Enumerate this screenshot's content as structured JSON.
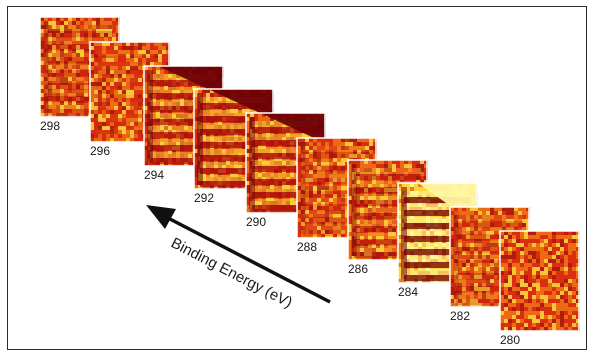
{
  "axis_label": "Binding Energy (eV)",
  "arrow": {
    "direction": "up-left"
  },
  "colors": {
    "dark": "#6e0006",
    "deep": "#a50f0a",
    "red": "#d8230f",
    "orange": "#ec6a14",
    "yellow": "#fbd53e",
    "pale": "#fff7a0",
    "text": "#1a1a1a"
  },
  "panels": [
    {
      "energy": "298",
      "pattern": "noise-stripes",
      "stripe_strength": 0.35
    },
    {
      "energy": "296",
      "pattern": "noise",
      "stripe_strength": 0.1
    },
    {
      "energy": "294",
      "pattern": "stripes",
      "stripe_strength": 0.9,
      "dark_corner": true
    },
    {
      "energy": "292",
      "pattern": "stripes",
      "stripe_strength": 1.0,
      "dark_corner": true
    },
    {
      "energy": "290",
      "pattern": "stripes",
      "stripe_strength": 0.95,
      "dark_corner": true
    },
    {
      "energy": "288",
      "pattern": "noise-stripes",
      "stripe_strength": 0.3
    },
    {
      "energy": "286",
      "pattern": "stripes",
      "stripe_strength": 0.6
    },
    {
      "energy": "284",
      "pattern": "stripes-bright",
      "stripe_strength": 1.0,
      "bright_corner": true
    },
    {
      "energy": "282",
      "pattern": "noise-stripes",
      "stripe_strength": 0.3
    },
    {
      "energy": "280",
      "pattern": "noise",
      "stripe_strength": 0.05
    }
  ]
}
